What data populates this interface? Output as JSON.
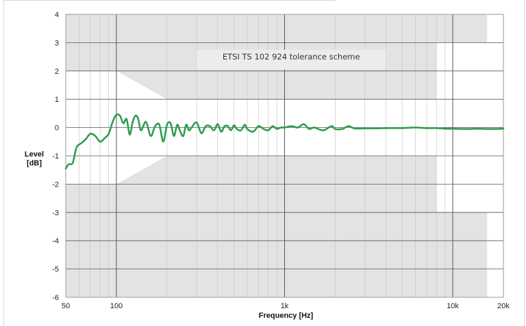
{
  "chart_data": {
    "type": "line",
    "title": "",
    "xlabel": "Frequency [Hz]",
    "ylabel": [
      "Level",
      "[dB]"
    ],
    "xscale": "log",
    "xlim": [
      50,
      20000
    ],
    "ylim": [
      -6,
      4
    ],
    "grid": true,
    "xticks": [
      {
        "value": 50,
        "label": "50"
      },
      {
        "value": 100,
        "label": "100"
      },
      {
        "value": 1000,
        "label": "1k"
      },
      {
        "value": 10000,
        "label": "10k"
      },
      {
        "value": 20000,
        "label": "20k"
      }
    ],
    "yticks": [
      {
        "value": 4,
        "label": "4"
      },
      {
        "value": 3,
        "label": "3"
      },
      {
        "value": 2,
        "label": "2"
      },
      {
        "value": 1,
        "label": "1"
      },
      {
        "value": 0,
        "label": "0"
      },
      {
        "value": -1,
        "label": "-1"
      },
      {
        "value": -2,
        "label": "-2"
      },
      {
        "value": -3,
        "label": "-3"
      },
      {
        "value": -4,
        "label": "-4"
      },
      {
        "value": -5,
        "label": "-5"
      },
      {
        "value": -6,
        "label": "-6"
      }
    ],
    "annotation": "ETSI TS 102 924 tolerance scheme",
    "tolerance_band": {
      "upper": [
        [
          100,
          2
        ],
        [
          200,
          1
        ],
        [
          8000,
          1
        ]
      ],
      "lower": [
        [
          100,
          -2
        ],
        [
          200,
          -1
        ],
        [
          8000,
          -1
        ]
      ],
      "outer_upper": [
        [
          16000,
          3
        ]
      ],
      "outer_lower": [
        [
          16000,
          -3
        ]
      ]
    },
    "series": [
      {
        "color": "#2f9e4f",
        "x": [
          50,
          52,
          55,
          58,
          62,
          66,
          70,
          75,
          80,
          85,
          90,
          95,
          100,
          105,
          110,
          115,
          120,
          125,
          130,
          135,
          140,
          150,
          160,
          170,
          180,
          190,
          200,
          210,
          220,
          230,
          240,
          250,
          260,
          270,
          280,
          300,
          320,
          340,
          360,
          380,
          400,
          420,
          440,
          460,
          480,
          500,
          520,
          550,
          580,
          600,
          650,
          700,
          750,
          800,
          850,
          900,
          950,
          1000,
          1100,
          1200,
          1300,
          1400,
          1500,
          1700,
          1900,
          2000,
          2200,
          2400,
          2600,
          3000,
          3500,
          4000,
          5000,
          6000,
          7000,
          8000,
          9000,
          10000,
          12000,
          14000,
          16000,
          18000,
          20000
        ],
        "y": [
          -1.45,
          -1.3,
          -1.25,
          -0.7,
          -0.55,
          -0.4,
          -0.22,
          -0.3,
          -0.5,
          -0.38,
          -0.22,
          0.2,
          0.45,
          0.42,
          0.15,
          0.3,
          -0.25,
          0.2,
          0.42,
          0.3,
          -0.1,
          0.2,
          -0.3,
          0.05,
          0.1,
          -0.5,
          0.1,
          0.15,
          -0.3,
          0.1,
          -0.15,
          -0.3,
          0.1,
          -0.1,
          0.0,
          0.18,
          -0.2,
          0.05,
          0.05,
          -0.1,
          0.12,
          -0.15,
          0.05,
          0.05,
          -0.1,
          0.08,
          -0.05,
          -0.1,
          0.1,
          -0.05,
          -0.15,
          0.05,
          -0.05,
          -0.1,
          0.05,
          -0.05,
          0.0,
          0.0,
          0.05,
          0.0,
          0.12,
          -0.05,
          0.0,
          -0.1,
          0.05,
          -0.05,
          -0.05,
          0.05,
          -0.03,
          -0.03,
          -0.03,
          -0.02,
          -0.02,
          0.0,
          -0.02,
          -0.02,
          -0.04,
          -0.04,
          -0.05,
          -0.04,
          -0.05,
          -0.05,
          -0.04
        ]
      }
    ]
  }
}
